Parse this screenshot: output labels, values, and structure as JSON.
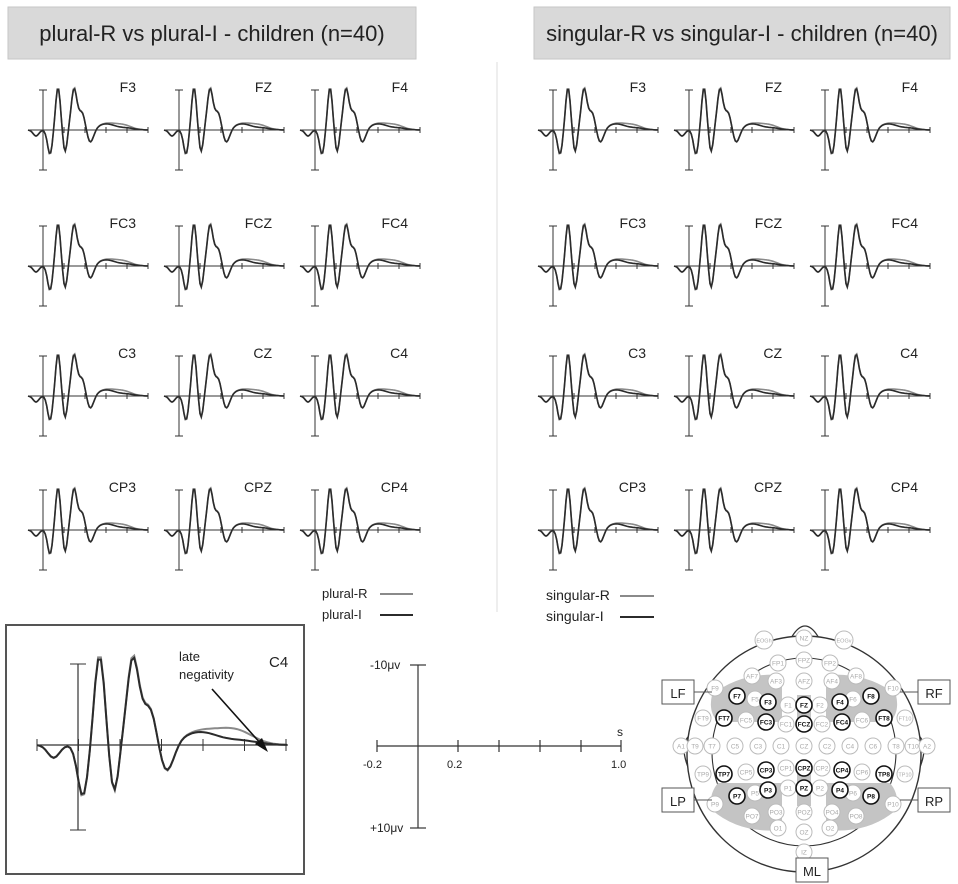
{
  "panels": [
    {
      "id": "plural",
      "title": "plural-R vs plural-I - children (n=40)",
      "electrodes": [
        [
          "F3",
          "FZ",
          "F4"
        ],
        [
          "FC3",
          "FCZ",
          "FC4"
        ],
        [
          "C3",
          "CZ",
          "C4"
        ],
        [
          "CP3",
          "CPZ",
          "CP4"
        ]
      ],
      "legend": [
        {
          "label": "plural-R",
          "color": "#8a8a8a"
        },
        {
          "label": "plural-I",
          "color": "#2b2b2b"
        }
      ]
    },
    {
      "id": "singular",
      "title": "singular-R vs singular-I - children (n=40)",
      "electrodes": [
        [
          "F3",
          "FZ",
          "F4"
        ],
        [
          "FC3",
          "FCZ",
          "FC4"
        ],
        [
          "C3",
          "CZ",
          "C4"
        ],
        [
          "CP3",
          "CPZ",
          "CP4"
        ]
      ],
      "legend": [
        {
          "label": "singular-R",
          "color": "#8a8a8a"
        },
        {
          "label": "singular-I",
          "color": "#2b2b2b"
        }
      ]
    }
  ],
  "zoom": {
    "electrode": "C4",
    "annotation": [
      "late",
      "negativity"
    ]
  },
  "scale": {
    "y_top": "-10μv",
    "y_bottom": "+10μv",
    "x_unit": "s",
    "x_ticks": [
      "-0.2",
      "0.2",
      "1.0"
    ]
  },
  "head_map": {
    "regions": [
      "LF",
      "RF",
      "LP",
      "RP",
      "ML"
    ],
    "highlighted": [
      "F7",
      "F3",
      "FT7",
      "FC3",
      "TP7",
      "CP3",
      "P7",
      "P3",
      "FZ",
      "FCZ",
      "CPZ",
      "PZ",
      "F4",
      "F8",
      "FC4",
      "FT8",
      "CP4",
      "TP8",
      "P4",
      "P8"
    ],
    "other": [
      "NZ",
      "FPZ",
      "FP1",
      "FP2",
      "AF7",
      "AF3",
      "AFZ",
      "AF4",
      "AF8",
      "F9",
      "F5",
      "F1",
      "F2",
      "F6",
      "F10",
      "FT9",
      "FC5",
      "FC1",
      "FC2",
      "FC6",
      "FT10",
      "A1",
      "T9",
      "T7",
      "C5",
      "C3",
      "C1",
      "CZ",
      "C2",
      "C4",
      "C6",
      "T8",
      "T10",
      "A2",
      "TP9",
      "CP5",
      "CP1",
      "CP2",
      "CP6",
      "TP10",
      "P9",
      "P5",
      "P1",
      "P2",
      "P6",
      "P10",
      "PO7",
      "PO3",
      "POZ",
      "PO4",
      "PO8",
      "O1",
      "OZ",
      "O2",
      "IZ",
      "EOGh",
      "EOGv"
    ]
  },
  "colors": {
    "R_condition": "#8a8a8a",
    "I_condition": "#2b2b2b",
    "title_bg": "#d9d9d9",
    "region_fill": "#c4c4c4"
  }
}
